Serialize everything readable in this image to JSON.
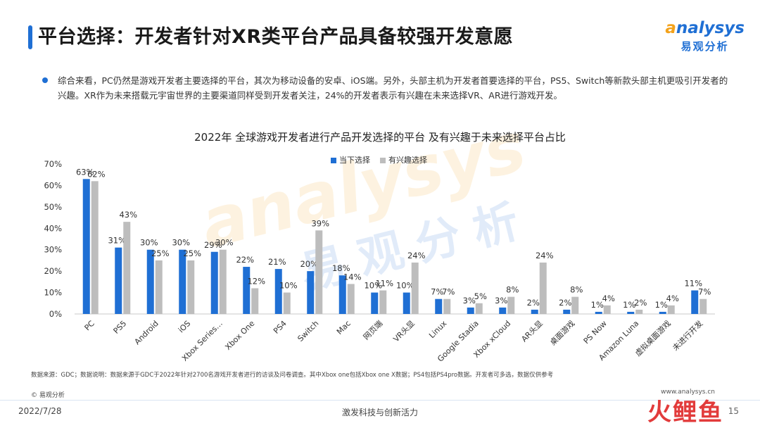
{
  "header": {
    "title": "平台选择：开发者针对XR类平台产品具备较强开发意愿",
    "logo_en_prefix": "a",
    "logo_en_rest": "nalysys",
    "logo_cn": "易观分析"
  },
  "summary": "综合来看，PC仍然是游戏开发者主要选择的平台，其次为移动设备的安卓、iOS端。另外，头部主机为开发者首要选择的平台，PS5、Switch等新款头部主机更吸引开发者的兴趣。XR作为未来搭载元宇宙世界的主要渠道同样受到开发者关注，24%的开发者表示有兴趣在未来选择VR、AR进行游戏开发。",
  "watermark": {
    "en": "analysys",
    "cn": "易观分析"
  },
  "chart_data": {
    "type": "bar",
    "title": "2022年 全球游戏开发者进行产品开发选择的平台 及有兴趣于未来选择平台占比",
    "categories": [
      "PC",
      "PS5",
      "Android",
      "iOS",
      "Xbox Series…",
      "Xbox One",
      "PS4",
      "Switch",
      "Mac",
      "网页端",
      "VR头显",
      "Linux",
      "Google Stadia",
      "Xbox xCloud",
      "AR头显",
      "桌面游戏",
      "PS Now",
      "Amazon Luna",
      "虚拟桌面游戏",
      "未进行开发"
    ],
    "series": [
      {
        "name": "当下选择",
        "color": "#1f6fd4",
        "values": [
          63,
          31,
          30,
          30,
          29,
          22,
          21,
          20,
          18,
          10,
          10,
          7,
          3,
          3,
          2,
          2,
          1,
          1,
          1,
          11
        ]
      },
      {
        "name": "有兴趣选择",
        "color": "#bdbdbd",
        "values": [
          62,
          43,
          25,
          25,
          30,
          12,
          10,
          39,
          14,
          11,
          24,
          7,
          5,
          8,
          24,
          8,
          4,
          2,
          4,
          7
        ]
      }
    ],
    "y_ticks": [
      "0%",
      "10%",
      "20%",
      "30%",
      "40%",
      "50%",
      "60%",
      "70%"
    ],
    "ylim": [
      0,
      70
    ],
    "value_suffix": "%",
    "legend_position": "top-center",
    "grid": false
  },
  "footer": {
    "source": "数据来源：GDC；数据说明：数据来源于GDC于2022年针对2700名游戏开发者进行的访谈及问卷调查。其中Xbox one包括Xbox one X数据；PS4包括PS4pro数据。开发者可多选，数据仅供参考",
    "copyright": "© 易观分析",
    "website": "www.analysys.cn",
    "date": "2022/7/28",
    "slogan": "激发科技与创新活力",
    "page": "15",
    "corner_logo": "火鲤鱼"
  }
}
